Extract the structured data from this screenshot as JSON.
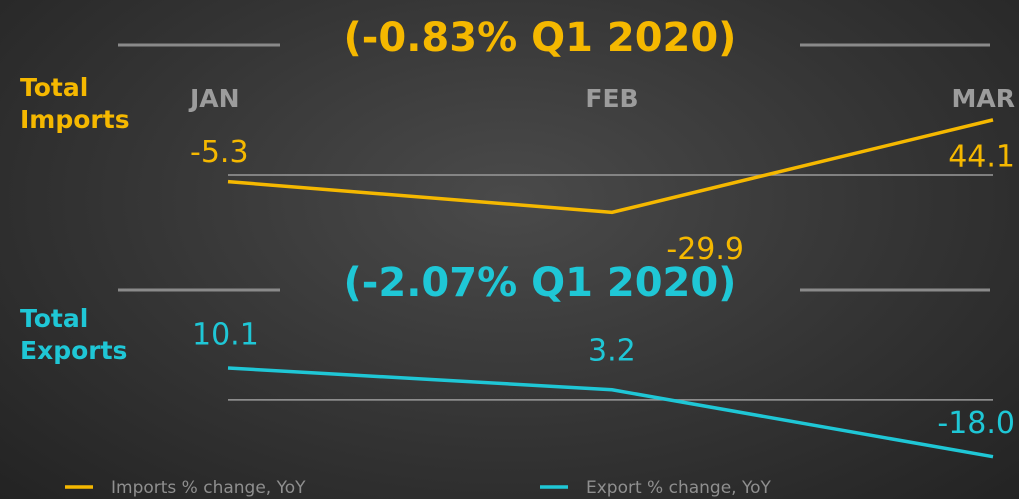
{
  "chart_data": [
    {
      "type": "line",
      "title": "(-0.83%  Q1 2020)",
      "y_label": "Total Imports",
      "categories": [
        "JAN",
        "FEB",
        "MAR"
      ],
      "series": [
        {
          "name": "Imports % change, YoY",
          "color": "#f5b800",
          "values": [
            -5.3,
            -29.9,
            44.1
          ]
        }
      ],
      "ylim": [
        -40,
        60
      ]
    },
    {
      "type": "line",
      "title": "(-2.07%  Q1 2020)",
      "y_label": "Total Exports",
      "series": [
        {
          "name": "Export % change, YoY",
          "color": "#1fc7d6",
          "values": [
            10.1,
            3.2,
            -18.0
          ],
          "value_labels": [
            "10.1",
            "3.2",
            "-18.0"
          ]
        }
      ],
      "ylim": [
        -20,
        12
      ]
    }
  ]
}
